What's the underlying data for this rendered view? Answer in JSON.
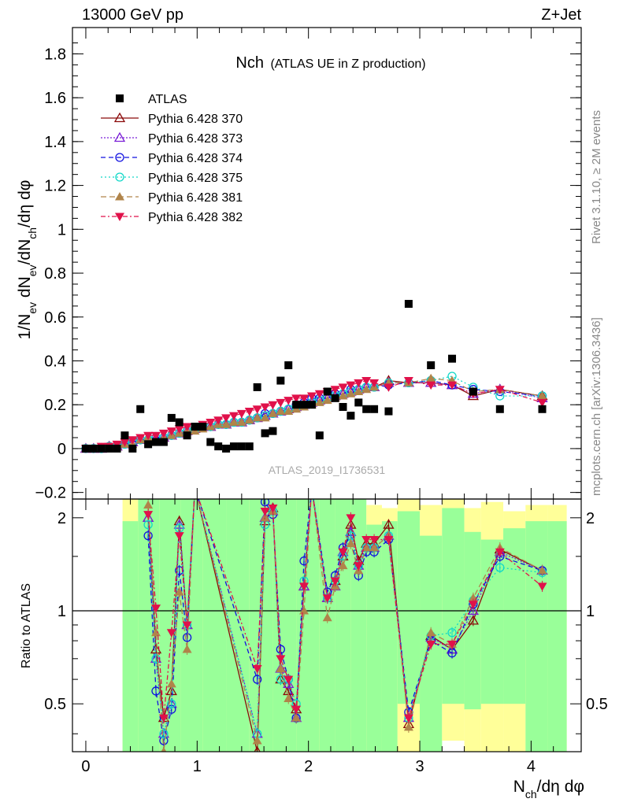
{
  "header": {
    "left": "13000 GeV pp",
    "right": "Z+Jet"
  },
  "side_labels": {
    "rivet": "Rivet 3.1.10, ≥ 2M events",
    "mcplots": "mcplots.cern.ch [arXiv:1306.3436]"
  },
  "watermark": "ATLAS_2019_I1736531",
  "chart_data": [
    {
      "panel": "main",
      "type": "scatter",
      "title": "Nch",
      "subtitle": "(ATLAS UE in Z production)",
      "ylabel": "1/N_ev dN_ev/dN_ch/dη dφ",
      "ylim": [
        -0.23,
        1.92
      ],
      "xlim": [
        -0.12,
        4.45
      ],
      "yticks": [
        "−0.2",
        "0",
        "0.2",
        "0.4",
        "0.6",
        "0.8",
        "1",
        "1.2",
        "1.4",
        "1.6",
        "1.8"
      ],
      "xticks": [
        "0",
        "1",
        "2",
        "3",
        "4"
      ],
      "legend_position": "top-left",
      "x": [
        0.0,
        0.07,
        0.14,
        0.21,
        0.28,
        0.35,
        0.42,
        0.49,
        0.56,
        0.63,
        0.7,
        0.77,
        0.84,
        0.91,
        0.98,
        1.05,
        1.12,
        1.19,
        1.26,
        1.33,
        1.4,
        1.47,
        1.54,
        1.61,
        1.68,
        1.75,
        1.82,
        1.89,
        1.96,
        2.03,
        2.1,
        2.17,
        2.24,
        2.31,
        2.38,
        2.45,
        2.52,
        2.59,
        2.72,
        2.9,
        3.1,
        3.29,
        3.48,
        3.72,
        4.1
      ],
      "series": [
        {
          "name": "ATLAS",
          "color": "#000000",
          "marker": "square",
          "values": [
            0.0,
            0.0,
            0.0,
            0.0,
            0.0,
            0.06,
            0.0,
            0.18,
            0.02,
            0.03,
            0.03,
            0.14,
            0.12,
            0.06,
            0.1,
            0.1,
            0.03,
            0.01,
            0.0,
            0.01,
            0.01,
            0.01,
            0.28,
            0.07,
            0.08,
            0.31,
            0.38,
            0.2,
            0.2,
            0.2,
            0.06,
            0.26,
            0.23,
            0.19,
            0.15,
            0.21,
            0.18,
            0.18,
            0.17,
            0.66,
            0.38,
            0.41,
            0.26,
            0.18,
            0.18
          ]
        },
        {
          "name": "Pythia 6.428 370",
          "color": "#8b0a0a",
          "marker": "triangle-open",
          "dash": "",
          "values": [
            0.0,
            0.0,
            0.0,
            0.01,
            0.01,
            0.02,
            0.03,
            0.04,
            0.04,
            0.05,
            0.05,
            0.06,
            0.07,
            0.08,
            0.09,
            0.1,
            0.1,
            0.11,
            0.11,
            0.12,
            0.12,
            0.13,
            0.14,
            0.15,
            0.16,
            0.17,
            0.18,
            0.19,
            0.2,
            0.21,
            0.22,
            0.23,
            0.24,
            0.25,
            0.26,
            0.27,
            0.28,
            0.28,
            0.31,
            0.3,
            0.3,
            0.29,
            0.24,
            0.27,
            0.24
          ]
        },
        {
          "name": "Pythia 6.428 373",
          "color": "#7a1fd6",
          "marker": "triangle-open",
          "dash": "2,2",
          "values": [
            0.0,
            0.0,
            0.0,
            0.01,
            0.01,
            0.02,
            0.03,
            0.04,
            0.04,
            0.05,
            0.05,
            0.06,
            0.07,
            0.08,
            0.09,
            0.1,
            0.1,
            0.11,
            0.11,
            0.12,
            0.12,
            0.13,
            0.14,
            0.15,
            0.16,
            0.17,
            0.18,
            0.19,
            0.2,
            0.21,
            0.22,
            0.23,
            0.24,
            0.25,
            0.26,
            0.27,
            0.28,
            0.28,
            0.3,
            0.3,
            0.3,
            0.29,
            0.25,
            0.27,
            0.23
          ]
        },
        {
          "name": "Pythia 6.428 374",
          "color": "#1010e0",
          "marker": "circle-open",
          "dash": "6,4",
          "values": [
            0.0,
            0.0,
            0.0,
            0.01,
            0.01,
            0.02,
            0.03,
            0.04,
            0.04,
            0.05,
            0.05,
            0.06,
            0.07,
            0.08,
            0.09,
            0.1,
            0.1,
            0.11,
            0.11,
            0.12,
            0.12,
            0.13,
            0.14,
            0.16,
            0.16,
            0.17,
            0.18,
            0.2,
            0.21,
            0.23,
            0.23,
            0.23,
            0.25,
            0.25,
            0.27,
            0.27,
            0.28,
            0.28,
            0.29,
            0.3,
            0.31,
            0.29,
            0.27,
            0.26,
            0.24
          ]
        },
        {
          "name": "Pythia 6.428 375",
          "color": "#10d8c8",
          "marker": "circle-open",
          "dash": "2,3",
          "values": [
            0.0,
            0.0,
            0.0,
            0.01,
            0.01,
            0.02,
            0.03,
            0.04,
            0.04,
            0.05,
            0.05,
            0.06,
            0.07,
            0.08,
            0.09,
            0.1,
            0.1,
            0.11,
            0.11,
            0.12,
            0.12,
            0.13,
            0.14,
            0.15,
            0.16,
            0.17,
            0.18,
            0.19,
            0.2,
            0.21,
            0.22,
            0.23,
            0.24,
            0.25,
            0.26,
            0.27,
            0.28,
            0.28,
            0.3,
            0.3,
            0.31,
            0.33,
            0.28,
            0.24,
            0.24
          ]
        },
        {
          "name": "Pythia 6.428 381",
          "color": "#b0844a",
          "marker": "triangle-filled",
          "dash": "7,4",
          "values": [
            0.0,
            0.0,
            0.0,
            0.01,
            0.01,
            0.02,
            0.02,
            0.04,
            0.05,
            0.04,
            0.05,
            0.06,
            0.07,
            0.08,
            0.08,
            0.09,
            0.1,
            0.11,
            0.11,
            0.12,
            0.12,
            0.13,
            0.14,
            0.14,
            0.16,
            0.17,
            0.17,
            0.18,
            0.19,
            0.2,
            0.21,
            0.22,
            0.23,
            0.24,
            0.25,
            0.26,
            0.27,
            0.28,
            0.3,
            0.3,
            0.32,
            0.31,
            0.26,
            0.27,
            0.24
          ]
        },
        {
          "name": "Pythia 6.428 382",
          "color": "#e0114a",
          "marker": "triangle-down-filled",
          "dash": "6,3,2,3",
          "values": [
            0.0,
            0.0,
            0.01,
            0.01,
            0.02,
            0.03,
            0.04,
            0.05,
            0.06,
            0.06,
            0.07,
            0.08,
            0.09,
            0.1,
            0.1,
            0.11,
            0.12,
            0.13,
            0.14,
            0.15,
            0.16,
            0.17,
            0.18,
            0.19,
            0.2,
            0.21,
            0.22,
            0.23,
            0.23,
            0.24,
            0.25,
            0.26,
            0.27,
            0.28,
            0.29,
            0.3,
            0.31,
            0.3,
            0.28,
            0.31,
            0.29,
            0.29,
            0.25,
            0.27,
            0.21
          ]
        }
      ]
    },
    {
      "panel": "ratio",
      "type": "line",
      "ylabel": "Ratio to ATLAS",
      "xlabel": "N_ch/dη dφ",
      "ylim": [
        0.35,
        2.3
      ],
      "xlim": [
        -0.12,
        4.45
      ],
      "yticks": [
        "0.5",
        "1",
        "2"
      ],
      "xticks": [
        "0",
        "1",
        "2",
        "3",
        "4"
      ],
      "reference_line": 1.0,
      "x": [
        0.56,
        0.63,
        0.7,
        0.77,
        0.84,
        0.91,
        0.98,
        1.54,
        1.61,
        1.68,
        1.75,
        1.82,
        1.89,
        1.96,
        2.03,
        2.17,
        2.24,
        2.31,
        2.38,
        2.45,
        2.52,
        2.59,
        2.72,
        2.9,
        3.1,
        3.29,
        3.48,
        3.72,
        4.1
      ],
      "series": [
        {
          "name": "Pythia 6.428 370",
          "values": [
            2.0,
            0.75,
            0.45,
            0.55,
            1.95,
            0.9,
            2.5,
            0.35,
            1.95,
            2.15,
            0.6,
            0.55,
            0.48,
            1.2,
            2.5,
            1.1,
            1.25,
            1.5,
            1.9,
            1.45,
            1.65,
            1.65,
            1.9,
            0.43,
            0.83,
            0.75,
            0.93,
            1.58,
            1.35
          ]
        },
        {
          "name": "Pythia 6.428 373",
          "values": [
            2.0,
            0.7,
            0.4,
            0.5,
            1.9,
            0.9,
            2.5,
            0.4,
            2.0,
            2.1,
            0.65,
            0.58,
            0.45,
            1.2,
            2.5,
            1.1,
            1.2,
            1.55,
            1.8,
            1.4,
            1.6,
            1.6,
            1.75,
            0.45,
            0.82,
            0.75,
            1.0,
            1.55,
            1.35
          ]
        },
        {
          "name": "Pythia 6.428 374",
          "values": [
            1.75,
            0.55,
            0.38,
            0.48,
            1.35,
            0.82,
            2.5,
            0.6,
            2.25,
            2.05,
            0.75,
            0.6,
            0.45,
            1.45,
            2.5,
            1.15,
            1.3,
            1.6,
            1.75,
            1.3,
            1.55,
            1.55,
            1.7,
            0.47,
            0.8,
            0.73,
            1.05,
            1.5,
            1.35
          ]
        },
        {
          "name": "Pythia 6.428 375",
          "values": [
            1.9,
            0.7,
            0.4,
            0.5,
            1.85,
            0.9,
            2.5,
            0.4,
            1.9,
            2.1,
            0.6,
            0.6,
            0.5,
            1.25,
            2.5,
            1.1,
            1.25,
            1.5,
            1.75,
            1.4,
            1.6,
            1.6,
            1.75,
            0.45,
            0.83,
            0.85,
            1.08,
            1.38,
            1.33
          ]
        },
        {
          "name": "Pythia 6.428 381",
          "values": [
            2.2,
            0.85,
            0.35,
            0.58,
            1.15,
            0.75,
            2.5,
            0.38,
            2.0,
            2.1,
            0.65,
            0.52,
            0.45,
            1.0,
            2.5,
            0.95,
            1.2,
            1.4,
            1.65,
            1.35,
            1.6,
            1.6,
            1.75,
            0.42,
            0.85,
            0.78,
            1.1,
            1.6,
            1.35
          ]
        },
        {
          "name": "Pythia 6.428 382",
          "values": [
            2.05,
            1.02,
            0.45,
            0.85,
            1.75,
            0.9,
            2.5,
            0.65,
            2.1,
            2.15,
            0.7,
            0.6,
            0.48,
            1.2,
            2.5,
            1.1,
            1.25,
            1.55,
            2.0,
            1.4,
            1.7,
            1.7,
            1.7,
            0.45,
            0.78,
            0.78,
            1.05,
            1.55,
            1.2
          ]
        }
      ],
      "uncertainty_bands": {
        "edges": [
          0.33,
          0.47,
          0.66,
          0.85,
          1.05,
          1.26,
          1.47,
          1.68,
          1.89,
          2.1,
          2.24,
          2.38,
          2.52,
          2.66,
          2.8,
          3.0,
          3.2,
          3.4,
          3.55,
          3.75,
          3.95,
          4.15,
          4.32
        ],
        "stat_yellow": [
          [
            0.35,
            2.3
          ],
          [
            0.35,
            2.3
          ],
          [
            0.35,
            2.3
          ],
          [
            0.35,
            2.3
          ],
          [
            0.35,
            2.3
          ],
          [
            0.35,
            2.3
          ],
          [
            0.35,
            2.3
          ],
          [
            0.35,
            2.3
          ],
          [
            0.35,
            2.3
          ],
          [
            0.35,
            2.3
          ],
          [
            0.35,
            2.3
          ],
          [
            0.35,
            2.3
          ],
          [
            0.35,
            2.2
          ],
          [
            0.35,
            2.15
          ],
          [
            0.35,
            2.3
          ],
          [
            0.35,
            2.2
          ],
          [
            0.38,
            2.3
          ],
          [
            0.35,
            2.15
          ],
          [
            0.35,
            2.25
          ],
          [
            0.35,
            2.1
          ],
          [
            0.35,
            2.2
          ],
          [
            0.35,
            2.2
          ]
        ],
        "syst_green": [
          [
            0.35,
            1.95
          ],
          [
            0.35,
            2.3
          ],
          [
            0.35,
            2.3
          ],
          [
            0.35,
            2.3
          ],
          [
            0.35,
            2.3
          ],
          [
            0.35,
            2.3
          ],
          [
            0.35,
            2.3
          ],
          [
            0.35,
            2.3
          ],
          [
            0.35,
            2.3
          ],
          [
            0.35,
            2.3
          ],
          [
            0.35,
            2.3
          ],
          [
            0.35,
            2.3
          ],
          [
            0.35,
            1.9
          ],
          [
            0.35,
            1.95
          ],
          [
            0.5,
            2.1
          ],
          [
            0.35,
            1.75
          ],
          [
            0.5,
            2.15
          ],
          [
            0.48,
            1.8
          ],
          [
            0.5,
            1.7
          ],
          [
            0.5,
            1.85
          ],
          [
            0.35,
            1.95
          ],
          [
            0.35,
            1.95
          ]
        ]
      }
    }
  ]
}
